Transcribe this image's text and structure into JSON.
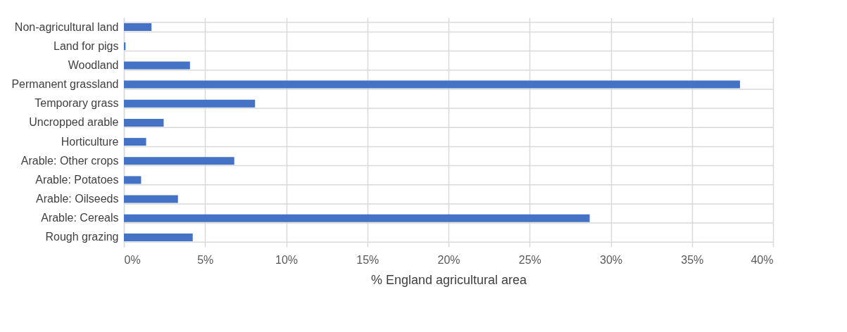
{
  "chart_data": {
    "type": "bar",
    "orientation": "horizontal",
    "categories": [
      "Non-agricultural land",
      "Land  for pigs",
      "Woodland",
      "Permanent grassland",
      "Temporary grass ",
      "Uncropped arable",
      "Horticulture",
      "Arable: Other crops",
      "Arable: Potatoes",
      "Arable: Oilseeds",
      "Arable: Cereals",
      "Rough grazing"
    ],
    "values": [
      1.7,
      0.1,
      4.07,
      37.96,
      8.08,
      2.45,
      1.37,
      6.8,
      1.06,
      3.33,
      28.7,
      4.24
    ],
    "color": "#4472c4",
    "xlabel": "% England agricultural area",
    "xlim": [
      0,
      40
    ],
    "xticks": [
      {
        "value": 0,
        "label": "0%"
      },
      {
        "value": 5,
        "label": "5%"
      },
      {
        "value": 10,
        "label": "10%"
      },
      {
        "value": 15,
        "label": "15%"
      },
      {
        "value": 20,
        "label": "20%"
      },
      {
        "value": 25,
        "label": "25%"
      },
      {
        "value": 30,
        "label": "30%"
      },
      {
        "value": 35,
        "label": "35%"
      },
      {
        "value": 40,
        "label": "40%"
      }
    ],
    "grid": true
  }
}
